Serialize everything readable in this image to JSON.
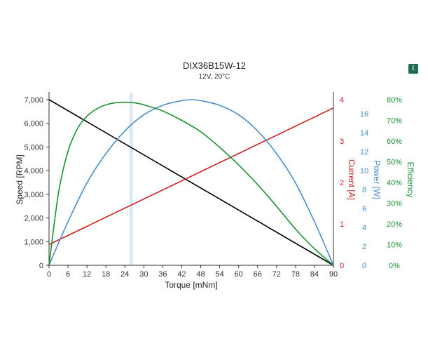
{
  "title": "DIX36B15W-12",
  "subtitle": "12V, 20°C",
  "export_icon": "download-icon",
  "colors": {
    "speed": "#000000",
    "current": "#cc1f1f",
    "power": "#4a8fcc",
    "efficiency": "#1a9433",
    "axis_text": "#333333",
    "highlight_band": "#dce8f5"
  },
  "chart_data": {
    "type": "line",
    "xlabel": "Torque [mNm]",
    "xlim": [
      0,
      90
    ],
    "x_ticks": [
      0,
      6,
      12,
      18,
      24,
      30,
      36,
      42,
      48,
      54,
      60,
      66,
      72,
      78,
      84,
      90
    ],
    "highlight_x": 26,
    "axes": {
      "speed": {
        "label": "Speed [RPM]",
        "lim": [
          0,
          7000
        ],
        "ticks": [
          "0",
          "1,000",
          "2,000",
          "3,000",
          "4,000",
          "5,000",
          "6,000",
          "7,000"
        ],
        "tick_values": [
          0,
          1000,
          2000,
          3000,
          4000,
          5000,
          6000,
          7000
        ]
      },
      "current": {
        "label": "Current [A]",
        "lim": [
          0,
          4
        ],
        "ticks": [
          "0",
          "1",
          "2",
          "3",
          "4"
        ],
        "tick_values": [
          0,
          1,
          2,
          3,
          4
        ]
      },
      "power": {
        "label": "Power [W]",
        "lim": [
          0,
          17.5
        ],
        "ticks": [
          "0",
          "2",
          "4",
          "6",
          "8",
          "10",
          "12",
          "14",
          "16"
        ],
        "tick_values": [
          0,
          2,
          4,
          6,
          8,
          10,
          12,
          14,
          16
        ]
      },
      "efficiency": {
        "label": "Efficiency",
        "lim": [
          0,
          80
        ],
        "ticks": [
          "0%",
          "10%",
          "20%",
          "30%",
          "40%",
          "50%",
          "60%",
          "70%",
          "80%"
        ],
        "tick_values": [
          0,
          10,
          20,
          30,
          40,
          50,
          60,
          70,
          80
        ]
      }
    },
    "series": [
      {
        "name": "Speed [RPM]",
        "axis": "speed",
        "x": [
          0,
          90
        ],
        "y": [
          7000,
          0
        ]
      },
      {
        "name": "Current [A]",
        "axis": "current",
        "x": [
          0,
          90
        ],
        "y": [
          0.5,
          3.8
        ]
      },
      {
        "name": "Power [W]",
        "axis": "power",
        "x": [
          0,
          6,
          12,
          18,
          24,
          30,
          36,
          42,
          45,
          48,
          54,
          60,
          66,
          72,
          78,
          84,
          90
        ],
        "y": [
          0,
          4.6,
          8.7,
          11.8,
          14.2,
          15.9,
          16.9,
          17.4,
          17.5,
          17.4,
          16.9,
          15.9,
          14.2,
          11.8,
          8.7,
          4.6,
          0
        ]
      },
      {
        "name": "Efficiency",
        "axis": "efficiency",
        "x": [
          0,
          3,
          6,
          9,
          12,
          15,
          18,
          21,
          24,
          27,
          30,
          36,
          42,
          48,
          54,
          60,
          66,
          72,
          78,
          84,
          90
        ],
        "y": [
          0,
          35,
          55,
          66,
          72,
          75.5,
          77.5,
          78.5,
          78.8,
          78.5,
          77.5,
          74.5,
          70,
          64.5,
          57,
          48.5,
          39,
          28.5,
          17.5,
          8,
          0
        ]
      }
    ]
  }
}
